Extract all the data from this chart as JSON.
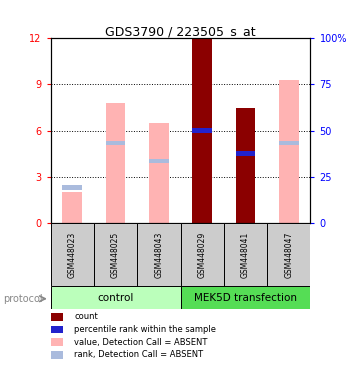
{
  "title": "GDS3790 / 223505_s_at",
  "samples": [
    "GSM448023",
    "GSM448025",
    "GSM448043",
    "GSM448029",
    "GSM448041",
    "GSM448047"
  ],
  "pink_bar_values": [
    2.0,
    7.8,
    6.5,
    12.0,
    7.5,
    9.3
  ],
  "blue_marker_values": [
    2.3,
    5.2,
    4.0,
    6.0,
    4.5,
    5.2
  ],
  "dark_red_bars": [
    false,
    false,
    false,
    true,
    true,
    false
  ],
  "ylim_left": [
    0,
    12
  ],
  "ylim_right": [
    0,
    100
  ],
  "yticks_left": [
    0,
    3,
    6,
    9,
    12
  ],
  "yticks_right": [
    0,
    25,
    50,
    75,
    100
  ],
  "ytick_labels_right": [
    "0",
    "25",
    "50",
    "75",
    "100%"
  ],
  "pink_color": "#FFB3B3",
  "dark_red_color": "#8B0000",
  "blue_color": "#2222CC",
  "light_blue_color": "#AABBDD",
  "control_color": "#BBFFBB",
  "mek5d_color": "#55DD55",
  "protocol_label": "protocol",
  "legend_items": [
    [
      "#8B0000",
      "count"
    ],
    [
      "#2222CC",
      "percentile rank within the sample"
    ],
    [
      "#FFB3B3",
      "value, Detection Call = ABSENT"
    ],
    [
      "#AABBDD",
      "rank, Detection Call = ABSENT"
    ]
  ]
}
